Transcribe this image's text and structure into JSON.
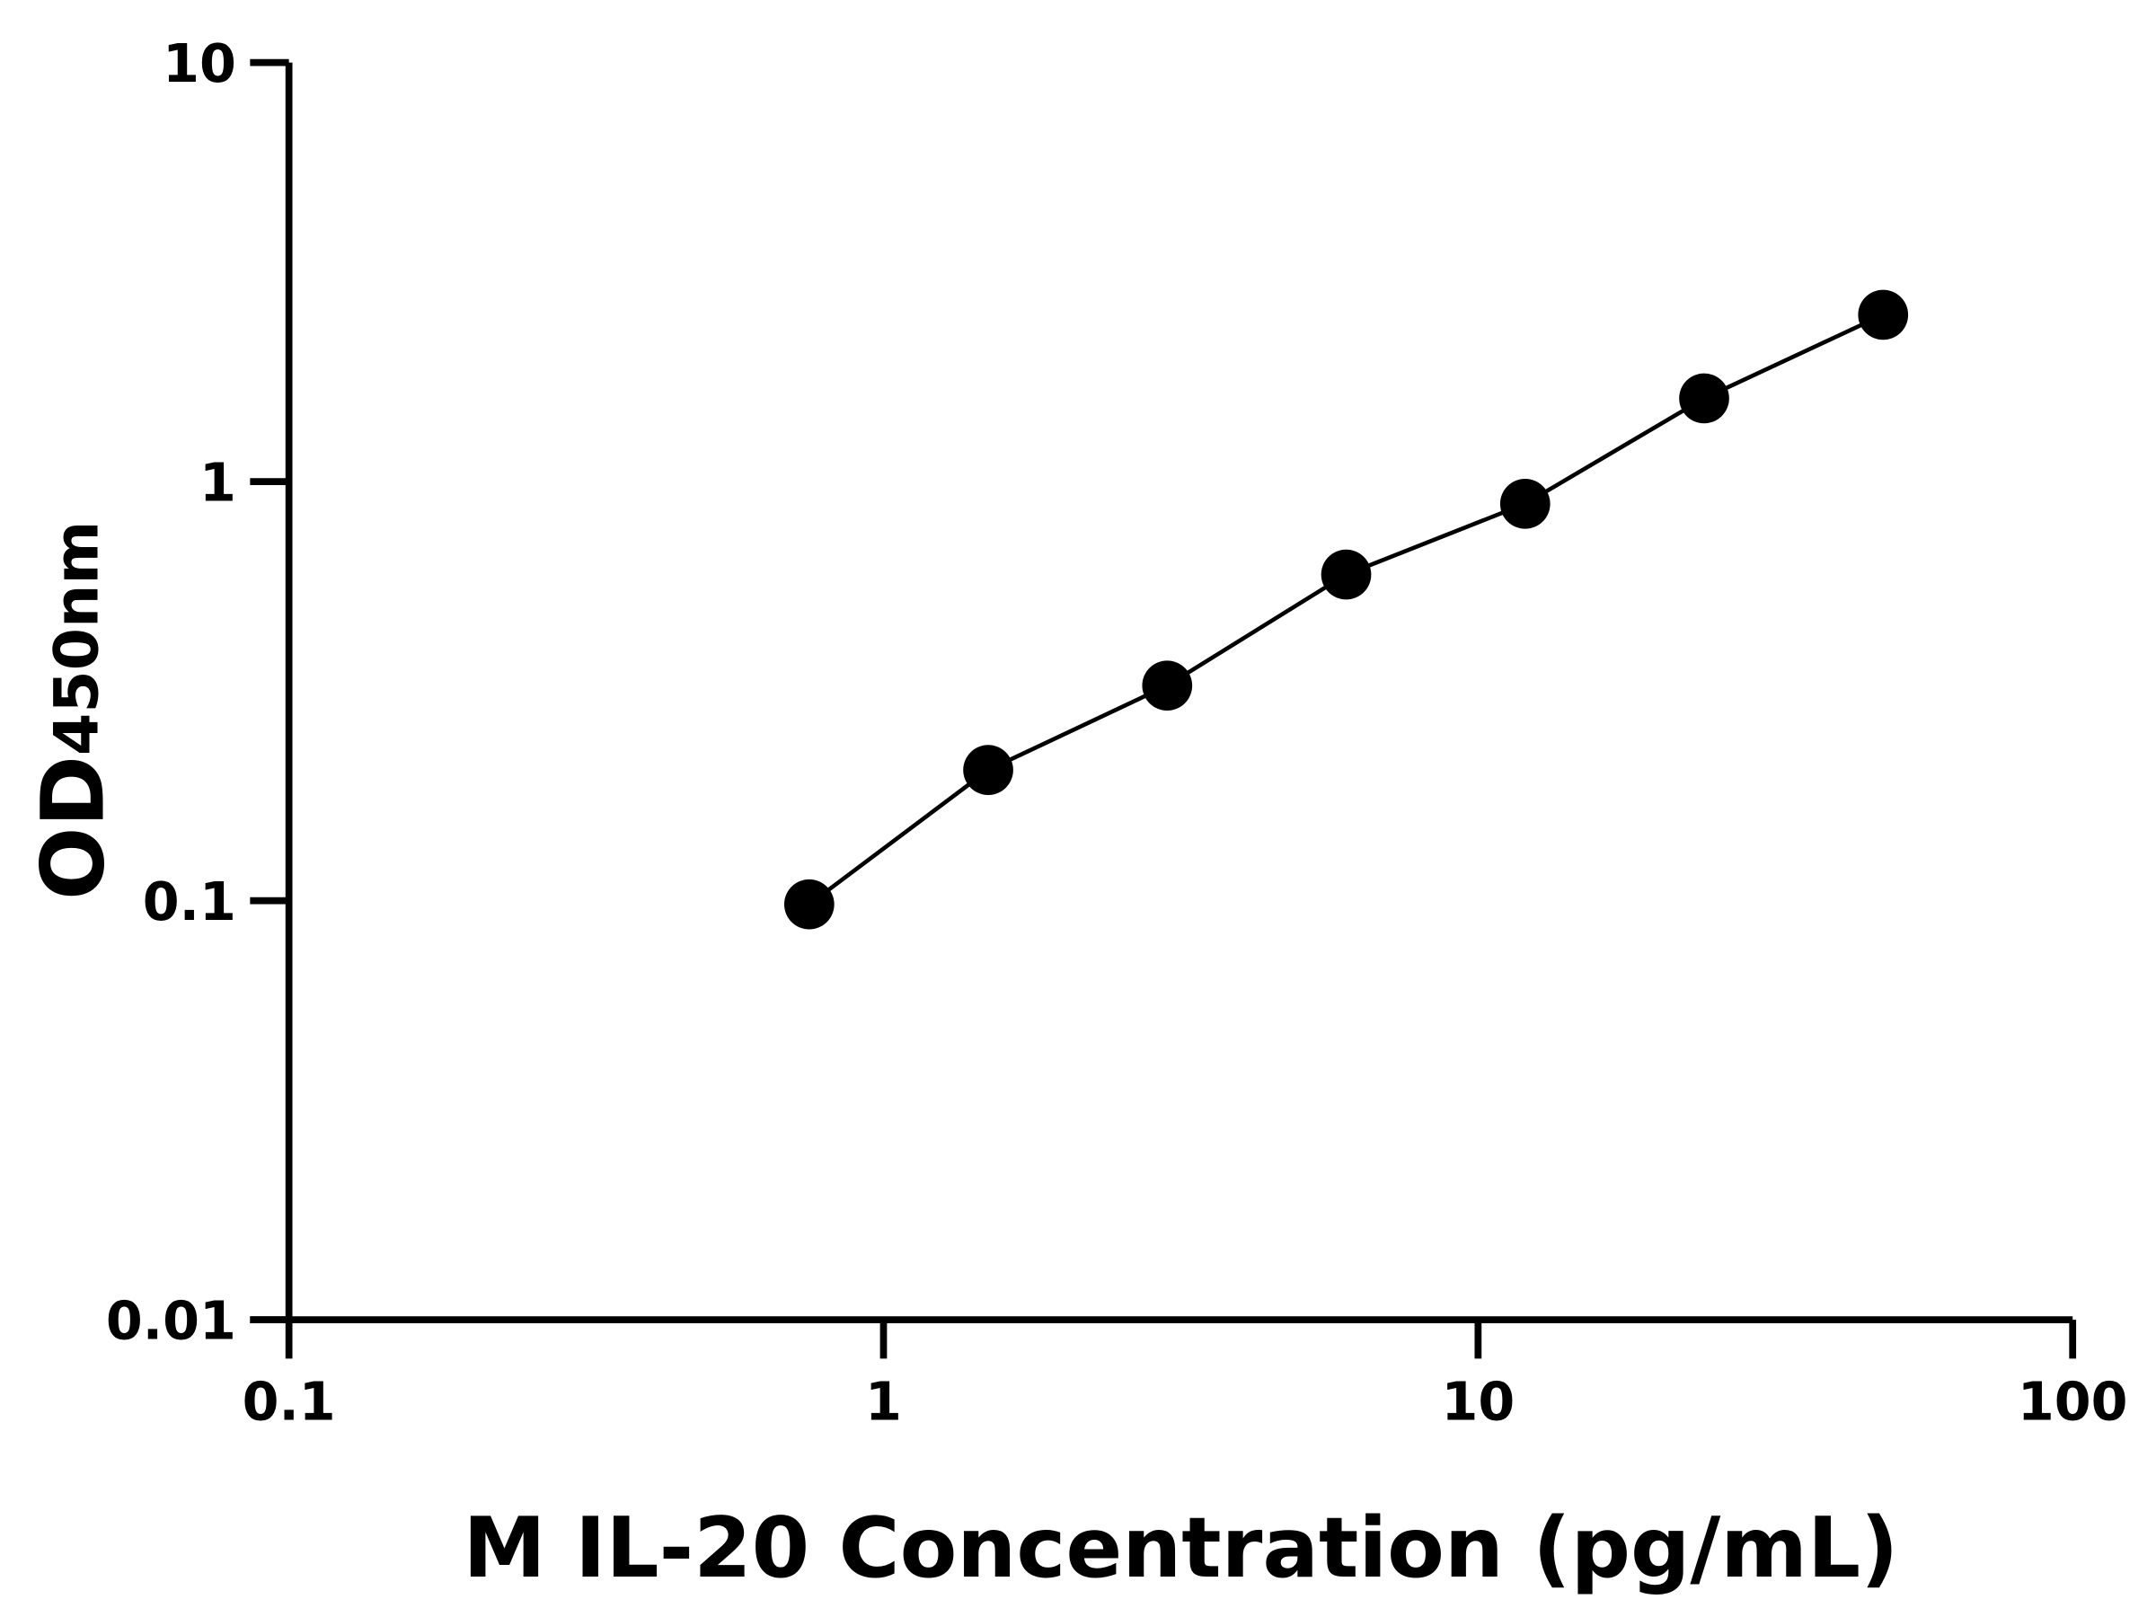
{
  "chart_data": {
    "type": "scatter",
    "title": "",
    "xlabel": "M IL-20 Concentration (pg/mL)",
    "ylabel": {
      "main": "OD",
      "subscript": "450nm"
    },
    "x_scale": "log",
    "y_scale": "log",
    "xlim": [
      0.1,
      100
    ],
    "ylim": [
      0.01,
      10
    ],
    "x_ticks": [
      "0.1",
      "1",
      "10",
      "100"
    ],
    "y_ticks": [
      "0.01",
      "0.1",
      "1",
      "10"
    ],
    "grid": false,
    "series": [
      {
        "x": [
          0.75,
          1.5,
          3,
          6,
          12,
          24,
          48
        ],
        "y": [
          0.098,
          0.205,
          0.326,
          0.6,
          0.885,
          1.58,
          2.5
        ],
        "marker": "circle",
        "color": "#000000",
        "fit_line": true
      }
    ]
  }
}
